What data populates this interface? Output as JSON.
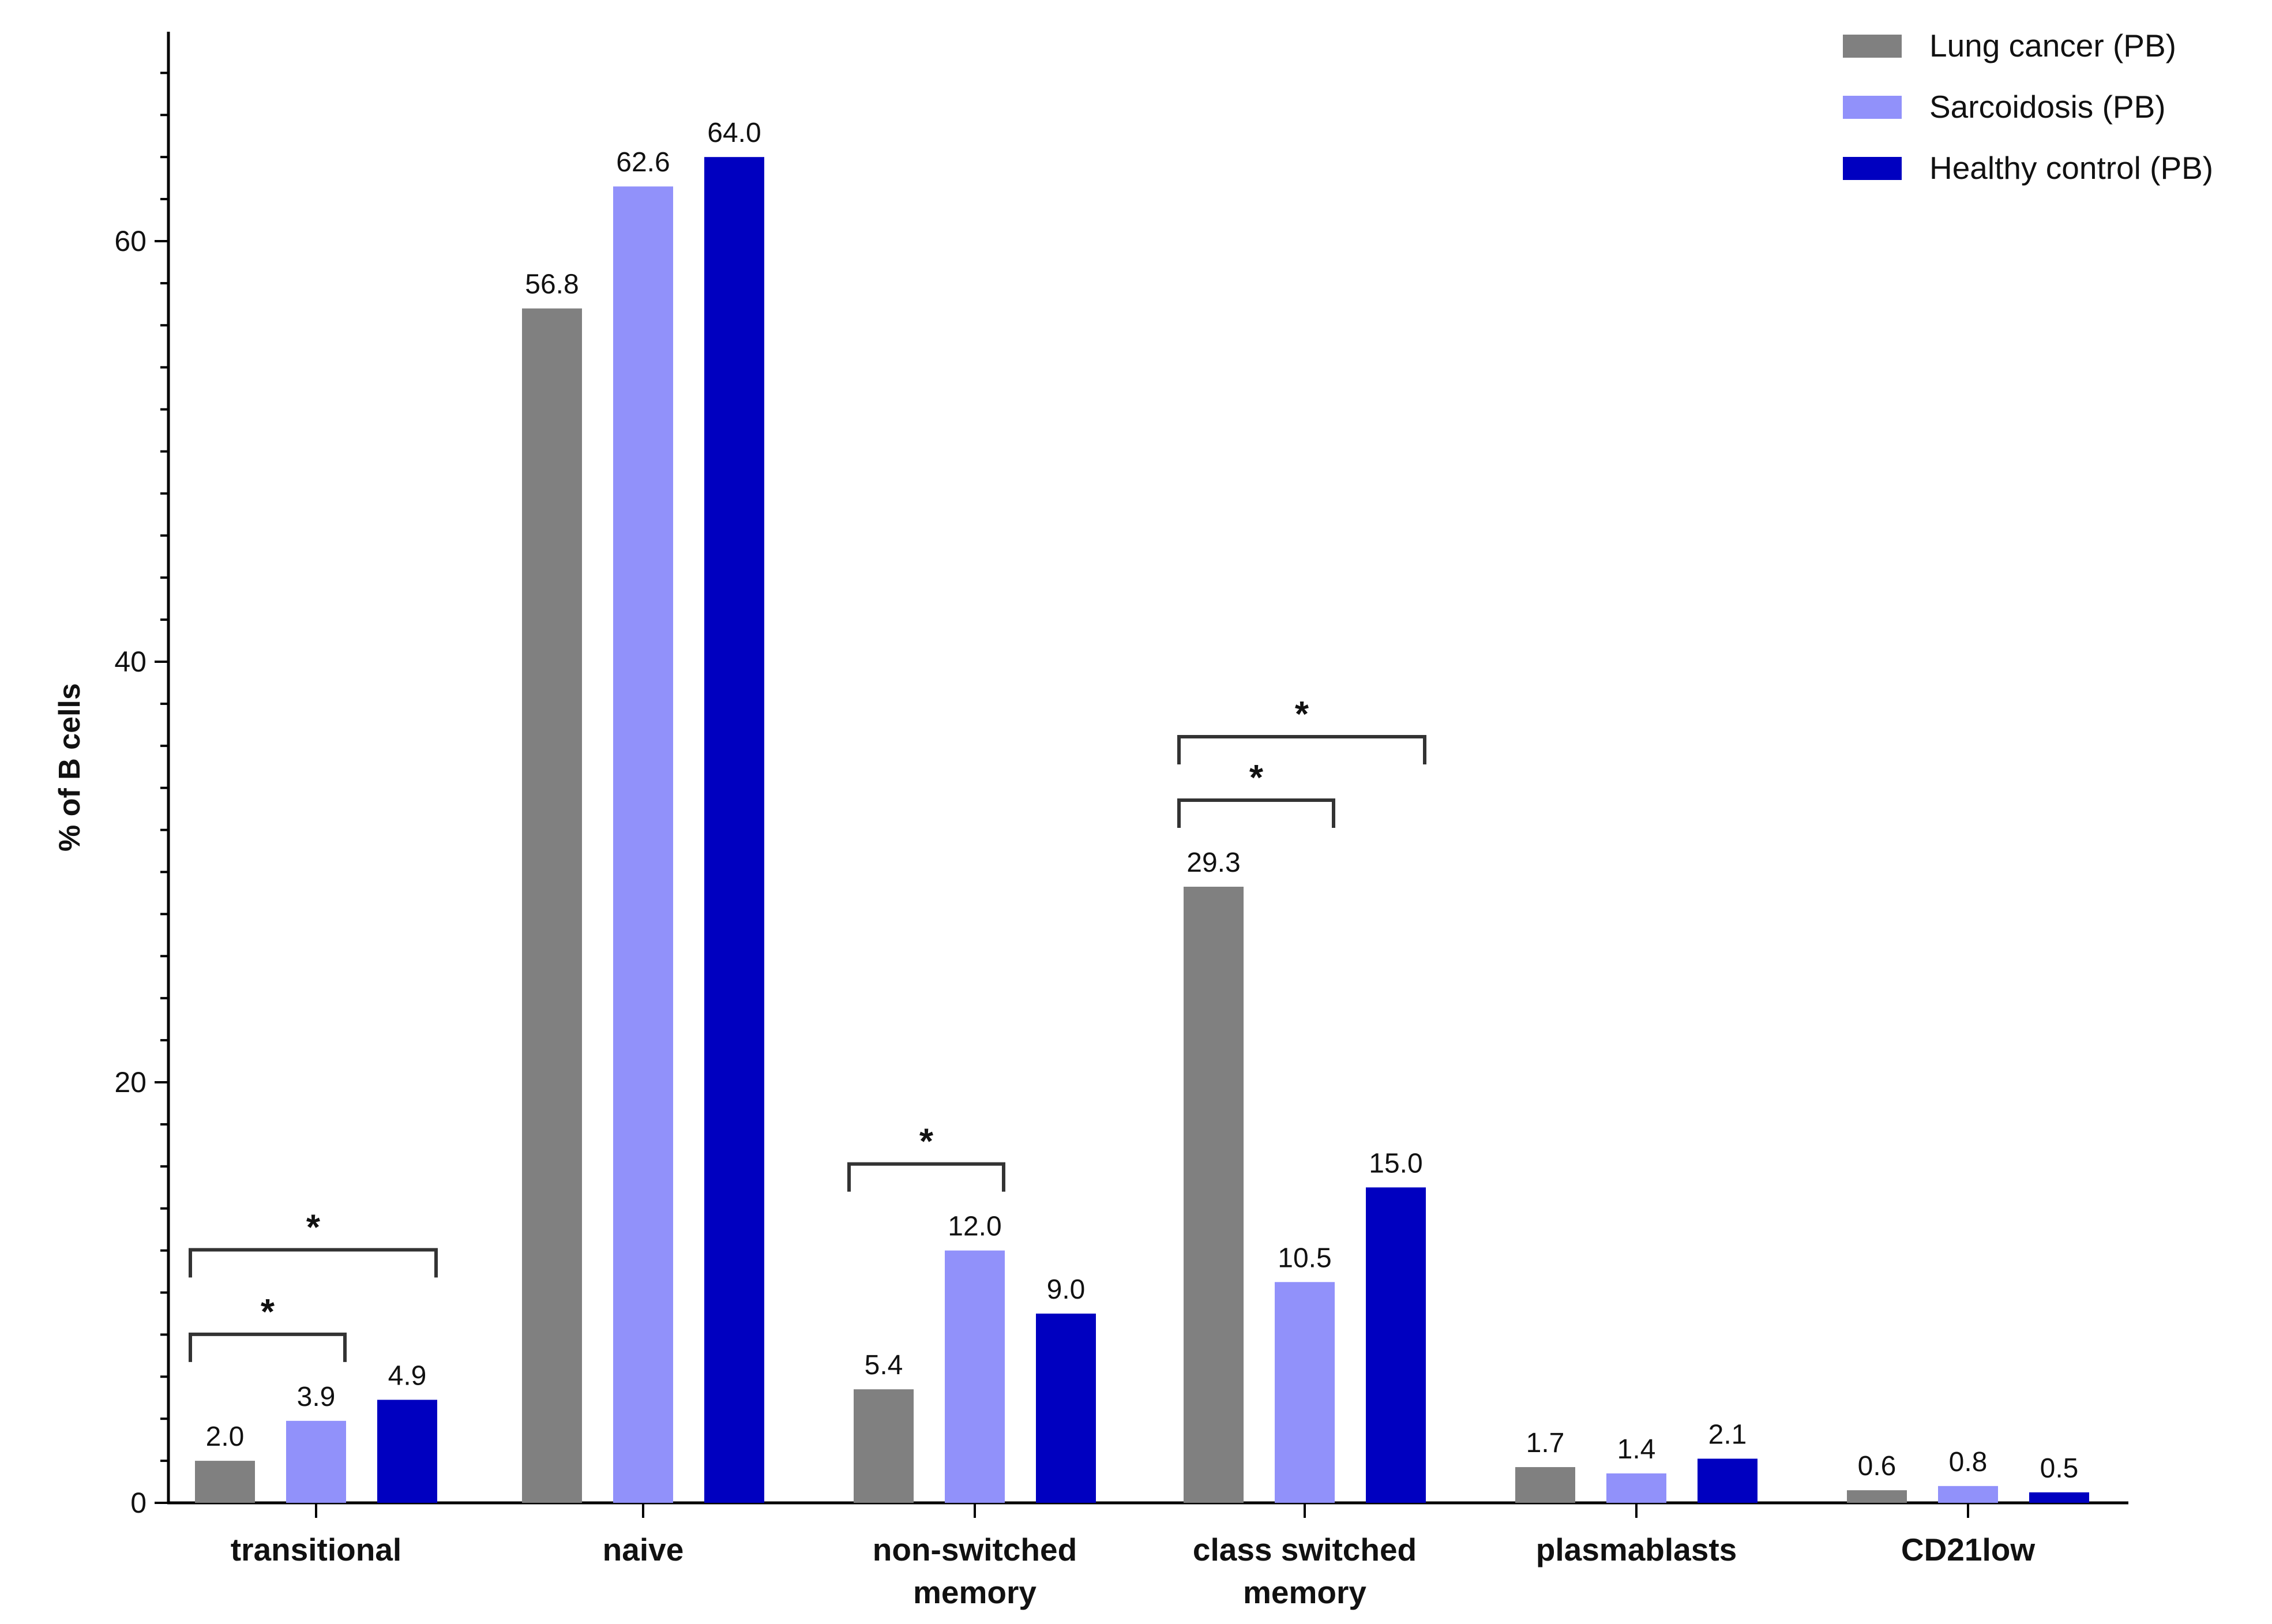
{
  "chart_data": {
    "type": "bar",
    "title": "",
    "xlabel": "",
    "ylabel": "% of B cells",
    "ylim": [
      0,
      60
    ],
    "y_ticks": [
      0,
      20,
      40,
      60
    ],
    "grid": false,
    "legend_position": "top-right",
    "categories": [
      [
        "transitional"
      ],
      [
        "naive"
      ],
      [
        "non-switched",
        "memory"
      ],
      [
        "class switched",
        "memory"
      ],
      [
        "plasmablasts"
      ],
      [
        "CD21low"
      ]
    ],
    "series": [
      {
        "name": "Lung cancer (PB)",
        "color": "#808080",
        "values": [
          2.0,
          56.8,
          5.4,
          29.3,
          1.7,
          0.6
        ]
      },
      {
        "name": "Sarcoidosis (PB)",
        "color": "#9191fa",
        "values": [
          3.9,
          62.6,
          12.0,
          10.5,
          1.4,
          0.8
        ]
      },
      {
        "name": "Healthy control  (PB)",
        "color": "#0000c0",
        "values": [
          4.9,
          64.0,
          9.0,
          15.0,
          2.1,
          0.5
        ]
      }
    ],
    "value_labels": [
      [
        "2.0",
        "56.8",
        "5.4",
        "29.3",
        "1.7",
        "0.6"
      ],
      [
        "3.9",
        "62.6",
        "12.0",
        "10.5",
        "1.4",
        "0.8"
      ],
      [
        "4.9",
        "64.0",
        "9.0",
        "15.0",
        "2.1",
        "0.5"
      ]
    ],
    "significance": [
      {
        "category": 0,
        "from_series": 0,
        "to_series": 1,
        "label": "*"
      },
      {
        "category": 0,
        "from_series": 0,
        "to_series": 2,
        "label": "*"
      },
      {
        "category": 2,
        "from_series": 0,
        "to_series": 1,
        "label": "*"
      },
      {
        "category": 3,
        "from_series": 0,
        "to_series": 1,
        "label": "*"
      },
      {
        "category": 3,
        "from_series": 0,
        "to_series": 2,
        "label": "*"
      }
    ]
  }
}
